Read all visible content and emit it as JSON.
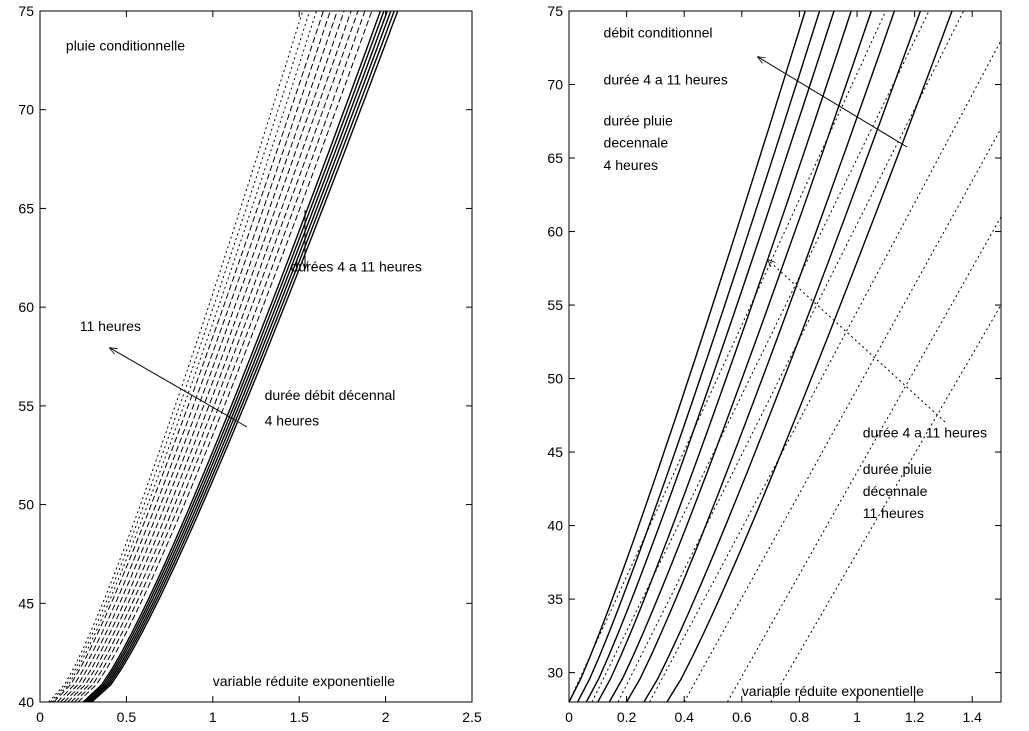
{
  "chart_data": [
    {
      "type": "line",
      "title": "",
      "xlabel": "",
      "ylabel": "",
      "xlim": [
        0,
        2.5
      ],
      "ylim": [
        40,
        75
      ],
      "xticks": [
        0,
        0.5,
        1,
        1.5,
        2,
        2.5
      ],
      "yticks": [
        40,
        45,
        50,
        55,
        60,
        65,
        70,
        75
      ],
      "xtick_labels": [
        "0",
        "0.5",
        "1",
        "1.5",
        "2",
        "2.5"
      ],
      "ytick_labels": [
        "40",
        "45",
        "50",
        "55",
        "60",
        "65",
        "70",
        "75"
      ],
      "grid": false,
      "annotations": [
        {
          "text": "pluie conditionnelle",
          "x": 0.15,
          "y": 73.0
        },
        {
          "text": "durées 4 a 11 heures",
          "x": 1.45,
          "y": 61.8
        },
        {
          "text": "11 heures",
          "x": 0.23,
          "y": 58.8
        },
        {
          "text": "durée débit décennal",
          "x": 1.3,
          "y": 55.3
        },
        {
          "text": "4 heures",
          "x": 1.3,
          "y": 54.0
        },
        {
          "text": "variable réduite exponentielle",
          "x": 1.0,
          "y": 40.8
        }
      ],
      "arrows": [
        {
          "from": [
            0.5,
            58.3
          ],
          "to": [
            1.36,
            58.3
          ]
        },
        {
          "from": [
            0.5,
            58.3
          ],
          "to": [
            1.36,
            58.3
          ]
        }
      ],
      "series": [
        {
          "style": "solid",
          "x_at_y40": 0.3,
          "x_at_y75": 2.07
        },
        {
          "style": "solid",
          "x_at_y40": 0.29,
          "x_at_y75": 2.05
        },
        {
          "style": "solid",
          "x_at_y40": 0.28,
          "x_at_y75": 2.03
        },
        {
          "style": "solid",
          "x_at_y40": 0.27,
          "x_at_y75": 2.01
        },
        {
          "style": "solid",
          "x_at_y40": 0.26,
          "x_at_y75": 1.99
        },
        {
          "style": "solid",
          "x_at_y40": 0.25,
          "x_at_y75": 1.97
        },
        {
          "style": "dashed",
          "x_at_y40": 0.22,
          "x_at_y75": 1.92
        },
        {
          "style": "dashed",
          "x_at_y40": 0.2,
          "x_at_y75": 1.88
        },
        {
          "style": "dashed",
          "x_at_y40": 0.18,
          "x_at_y75": 1.84
        },
        {
          "style": "dashed",
          "x_at_y40": 0.16,
          "x_at_y75": 1.8
        },
        {
          "style": "dashed",
          "x_at_y40": 0.14,
          "x_at_y75": 1.76
        },
        {
          "style": "dashed",
          "x_at_y40": 0.12,
          "x_at_y75": 1.72
        },
        {
          "style": "dashed",
          "x_at_y40": 0.1,
          "x_at_y75": 1.68
        },
        {
          "style": "dashed",
          "x_at_y40": 0.08,
          "x_at_y75": 1.64
        },
        {
          "style": "dotted",
          "x_at_y40": 0.07,
          "x_at_y75": 1.6
        },
        {
          "style": "dotted",
          "x_at_y40": 0.06,
          "x_at_y75": 1.56
        },
        {
          "style": "dotted",
          "x_at_y40": 0.05,
          "x_at_y75": 1.52
        }
      ]
    },
    {
      "type": "line",
      "title": "",
      "xlabel": "",
      "ylabel": "",
      "xlim": [
        0,
        1.5
      ],
      "ylim": [
        28,
        75
      ],
      "xticks": [
        0,
        0.2,
        0.4,
        0.6,
        0.8,
        1,
        1.2,
        1.4
      ],
      "yticks": [
        30,
        35,
        40,
        45,
        50,
        55,
        60,
        65,
        70,
        75
      ],
      "xtick_labels": [
        "0",
        "0.2",
        "0.4",
        "0.6",
        "0.8",
        "1",
        "1.2",
        "1.4"
      ],
      "ytick_labels": [
        "30",
        "35",
        "40",
        "45",
        "50",
        "55",
        "60",
        "65",
        "70",
        "75"
      ],
      "grid": false,
      "annotations": [
        {
          "text": "débit conditionnel",
          "x": 0.12,
          "y": 73.2
        },
        {
          "text": "durée 4 a 11 heures",
          "x": 0.12,
          "y": 70.0
        },
        {
          "text": "durée pluie",
          "x": 0.12,
          "y": 67.2
        },
        {
          "text": "decennale",
          "x": 0.12,
          "y": 65.7
        },
        {
          "text": "4 heures",
          "x": 0.12,
          "y": 64.2
        },
        {
          "text": "durée 4 a 11 heures",
          "x": 1.02,
          "y": 46.0
        },
        {
          "text": "durée pluie",
          "x": 1.02,
          "y": 43.5
        },
        {
          "text": "décennale",
          "x": 1.02,
          "y": 42.0
        },
        {
          "text": "11 heures",
          "x": 1.02,
          "y": 40.5
        },
        {
          "text": "variable réduite exponentielle",
          "x": 0.6,
          "y": 28.4
        }
      ],
      "series": [
        {
          "style": "solid",
          "x0": 0.0,
          "y0": 28,
          "x1": 0.82,
          "y1": 75
        },
        {
          "style": "solid",
          "x0": 0.03,
          "y0": 28,
          "x1": 0.87,
          "y1": 75
        },
        {
          "style": "solid",
          "x0": 0.06,
          "y0": 28,
          "x1": 0.92,
          "y1": 75
        },
        {
          "style": "solid",
          "x0": 0.1,
          "y0": 28,
          "x1": 0.98,
          "y1": 75
        },
        {
          "style": "solid",
          "x0": 0.14,
          "y0": 28,
          "x1": 1.05,
          "y1": 75
        },
        {
          "style": "solid",
          "x0": 0.2,
          "y0": 28,
          "x1": 1.13,
          "y1": 75
        },
        {
          "style": "solid",
          "x0": 0.26,
          "y0": 28,
          "x1": 1.22,
          "y1": 75
        },
        {
          "style": "solid",
          "x0": 0.34,
          "y0": 28,
          "x1": 1.33,
          "y1": 75
        },
        {
          "style": "dotted",
          "x0": 0.0,
          "y0": 28,
          "x1": 1.1,
          "y1": 75
        },
        {
          "style": "dotted",
          "x0": 0.08,
          "y0": 28,
          "x1": 1.25,
          "y1": 75
        },
        {
          "style": "dotted",
          "x0": 0.17,
          "y0": 28,
          "x1": 1.37,
          "y1": 75
        },
        {
          "style": "dotted",
          "x0": 0.28,
          "y0": 28,
          "x1": 1.5,
          "y1": 73
        },
        {
          "style": "dotted",
          "x0": 0.4,
          "y0": 28,
          "x1": 1.5,
          "y1": 67
        },
        {
          "style": "dotted",
          "x0": 0.55,
          "y0": 28,
          "x1": 1.5,
          "y1": 61
        },
        {
          "style": "dotted",
          "x0": 0.7,
          "y0": 28,
          "x1": 1.5,
          "y1": 55
        }
      ]
    }
  ]
}
